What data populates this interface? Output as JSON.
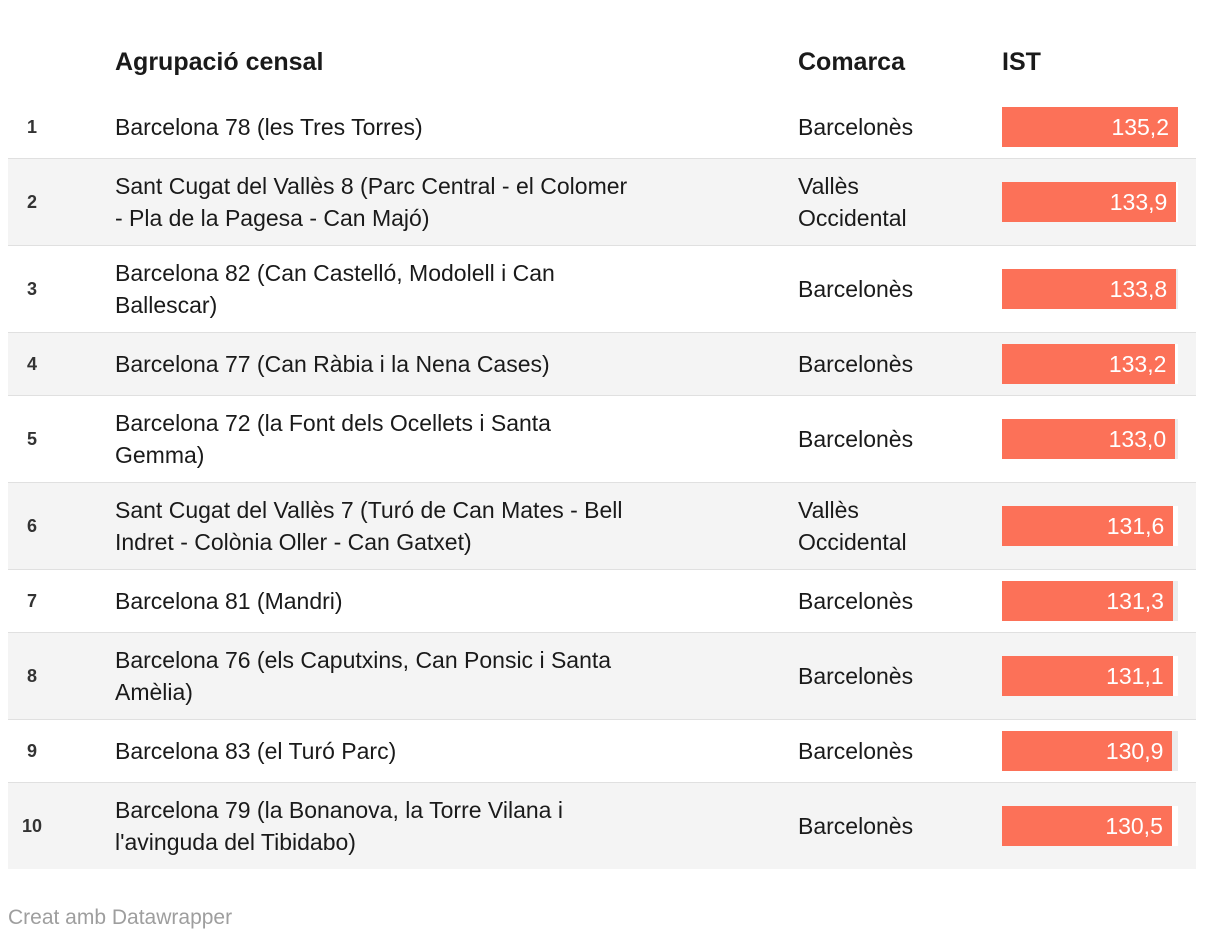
{
  "chart_data": {
    "type": "table",
    "columns": [
      "",
      "Agrupació censal",
      "Comarca",
      "IST"
    ],
    "bar_max": 135.2,
    "rows": [
      {
        "rank": "1",
        "name": "Barcelona 78 (les Tres Torres)",
        "comarca": "Barcelonès",
        "ist": 135.2,
        "ist_label": "135,2"
      },
      {
        "rank": "2",
        "name": "Sant Cugat del Vallès 8 (Parc Central - el Colomer\n- Pla de la Pagesa - Can Majó)",
        "comarca": "Vallès\nOccidental",
        "ist": 133.9,
        "ist_label": "133,9"
      },
      {
        "rank": "3",
        "name": "Barcelona 82 (Can Castelló, Modolell i Can\nBallescar)",
        "comarca": "Barcelonès",
        "ist": 133.8,
        "ist_label": "133,8"
      },
      {
        "rank": "4",
        "name": "Barcelona 77 (Can Ràbia i la Nena Cases)",
        "comarca": "Barcelonès",
        "ist": 133.2,
        "ist_label": "133,2"
      },
      {
        "rank": "5",
        "name": "Barcelona 72 (la Font dels Ocellets i Santa\nGemma)",
        "comarca": "Barcelonès",
        "ist": 133.0,
        "ist_label": "133,0"
      },
      {
        "rank": "6",
        "name": "Sant Cugat del Vallès 7 (Turó de Can Mates - Bell\nIndret - Colònia Oller - Can Gatxet)",
        "comarca": "Vallès\nOccidental",
        "ist": 131.6,
        "ist_label": "131,6"
      },
      {
        "rank": "7",
        "name": "Barcelona 81 (Mandri)",
        "comarca": "Barcelonès",
        "ist": 131.3,
        "ist_label": "131,3"
      },
      {
        "rank": "8",
        "name": "Barcelona 76 (els Caputxins, Can Ponsic i Santa\nAmèlia)",
        "comarca": "Barcelonès",
        "ist": 131.1,
        "ist_label": "131,1"
      },
      {
        "rank": "9",
        "name": "Barcelona 83 (el Turó Parc)",
        "comarca": "Barcelonès",
        "ist": 130.9,
        "ist_label": "130,9"
      },
      {
        "rank": "10",
        "name": "Barcelona 79 (la Bonanova, la Torre Vilana i\nl'avinguda del Tibidabo)",
        "comarca": "Barcelonès",
        "ist": 130.5,
        "ist_label": "130,5"
      }
    ]
  },
  "footer": {
    "credit": "Creat amb Datawrapper"
  },
  "colors": {
    "bar": "#fc7158",
    "bar_value_text": "#ffffff",
    "row_stripe": "#f4f4f4",
    "bar_track_on_white_row": "#ececec",
    "bar_track_on_striped_row": "#ffffff",
    "row_separator": "#e0e0e0",
    "body_text": "#1a1a1a",
    "credit_text": "#9e9e9e"
  }
}
